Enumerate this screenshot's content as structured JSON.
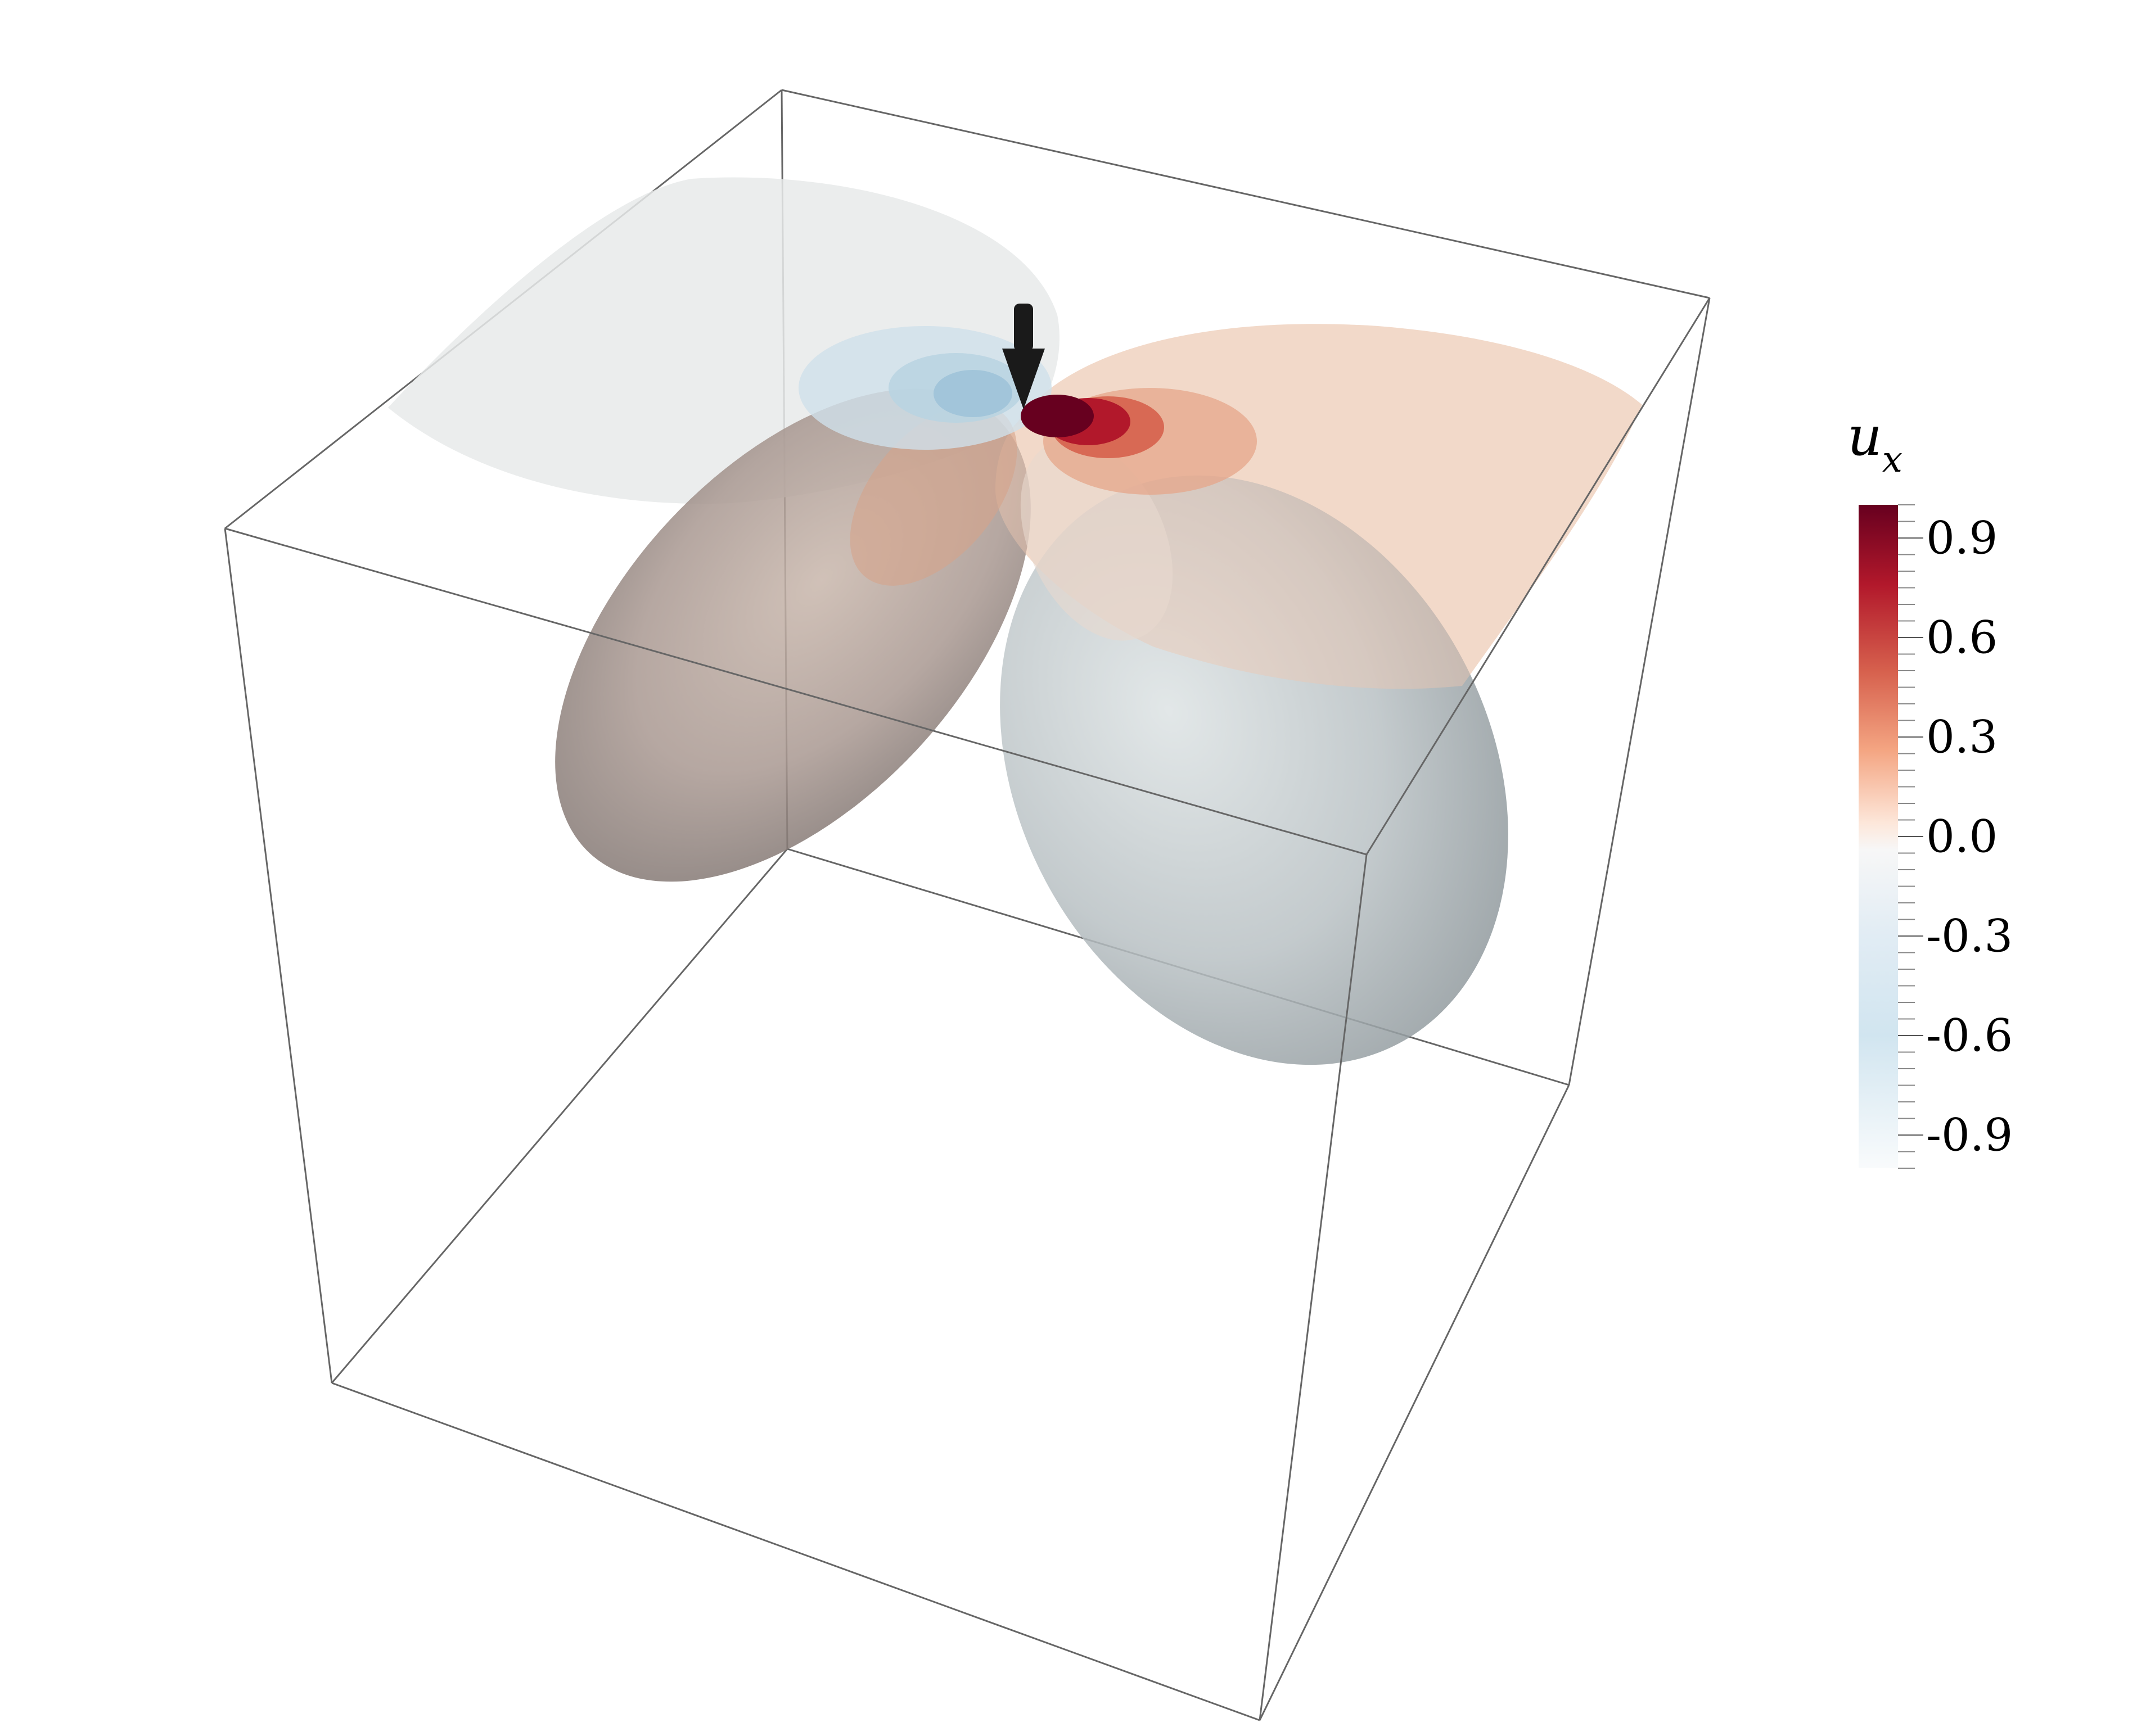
{
  "colorbar": {
    "variable": "u",
    "subscript": "x",
    "ticks": [
      "0.9",
      "0.6",
      "0.3",
      "0.0",
      "-0.3",
      "-0.6",
      "-0.9"
    ],
    "tick_values": [
      0.9,
      0.6,
      0.3,
      0.0,
      -0.3,
      -0.6,
      -0.9
    ],
    "range": [
      -1.0,
      1.0
    ],
    "colors": {
      "max": "#67001f",
      "high": "#d6604d",
      "mid_high": "#f4a582",
      "zero": "#f7f7f7",
      "mid_low": "#d1e5f0",
      "low": "#92c5de"
    }
  },
  "scene_colors": {
    "box_edge": "#555555",
    "arrow": "#1a1a1a",
    "lobe_negative": "#8c9aa2",
    "lobe_positive": "#c9b1a4"
  }
}
